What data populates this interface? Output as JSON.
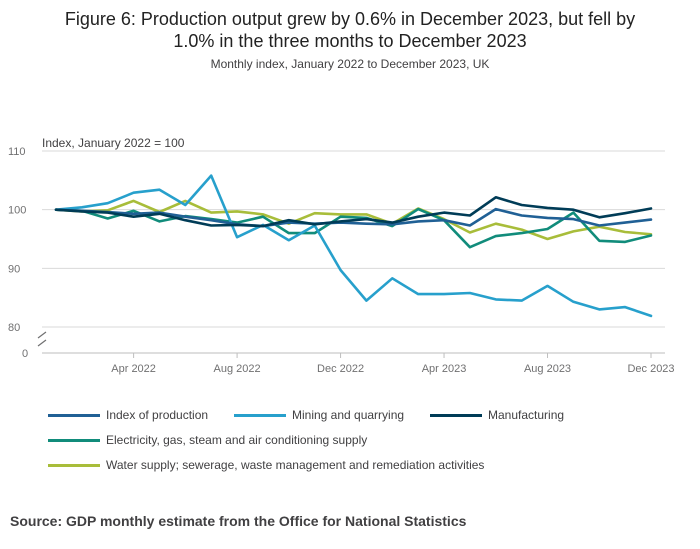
{
  "title": {
    "line1": "Figure 6: Production output grew by 0.6% in December 2023, but fell by",
    "line2": "1.0% in the three months to December 2023"
  },
  "subtitle": "Monthly index, January 2022 to December 2023, UK",
  "source": "Source: GDP monthly estimate from the Office for National Statistics",
  "chart_data": {
    "type": "line",
    "ylabel": "Index, January 2022 = 100",
    "ylim": [
      80,
      110
    ],
    "y_break": true,
    "y_ticks": [
      "110",
      "100",
      "90",
      "80",
      "0"
    ],
    "x": [
      "Jan 2022",
      "Feb 2022",
      "Mar 2022",
      "Apr 2022",
      "May 2022",
      "Jun 2022",
      "Jul 2022",
      "Aug 2022",
      "Sep 2022",
      "Oct 2022",
      "Nov 2022",
      "Dec 2022",
      "Jan 2023",
      "Feb 2023",
      "Mar 2023",
      "Apr 2023",
      "May 2023",
      "Jun 2023",
      "Jul 2023",
      "Aug 2023",
      "Sep 2023",
      "Oct 2023",
      "Nov 2023",
      "Dec 2023"
    ],
    "x_tick_labels": [
      {
        "label": "Apr 2022",
        "index": 3
      },
      {
        "label": "Aug 2022",
        "index": 7
      },
      {
        "label": "Dec 2022",
        "index": 11
      },
      {
        "label": "Apr 2023",
        "index": 15
      },
      {
        "label": "Aug 2023",
        "index": 19
      },
      {
        "label": "Dec 2023",
        "index": 23
      }
    ],
    "grid": "horizontal",
    "legend_position": "bottom",
    "series": [
      {
        "name": "Index of production",
        "color": "#206095",
        "values": [
          100,
          99.8,
          99.6,
          99.3,
          99.5,
          98.8,
          98.2,
          97.5,
          97.2,
          97.8,
          97.6,
          97.8,
          97.6,
          97.5,
          98.0,
          98.2,
          97.3,
          100.1,
          99.0,
          98.6,
          98.4,
          97.3,
          97.8,
          98.3
        ]
      },
      {
        "name": "Mining and quarrying",
        "color": "#27A0CC",
        "values": [
          100,
          100.4,
          101.1,
          102.9,
          103.4,
          100.8,
          105.8,
          95.3,
          97.4,
          94.8,
          97.3,
          89.7,
          84.5,
          88.3,
          85.6,
          85.6,
          85.8,
          84.7,
          84.5,
          87.0,
          84.3,
          83.0,
          83.4,
          81.9
        ]
      },
      {
        "name": "Manufacturing",
        "color": "#003C57",
        "values": [
          100,
          99.7,
          99.5,
          98.8,
          99.3,
          98.2,
          97.3,
          97.4,
          97.2,
          98.2,
          97.5,
          98.0,
          98.4,
          97.8,
          98.8,
          99.5,
          99.0,
          102.1,
          100.8,
          100.3,
          100.0,
          98.7,
          99.4,
          100.2
        ]
      },
      {
        "name": "Electricity, gas, steam and air conditioning supply",
        "color": "#118C7B",
        "values": [
          100,
          99.8,
          98.5,
          99.8,
          98.0,
          98.9,
          98.4,
          97.8,
          98.8,
          96.0,
          96.0,
          98.8,
          98.6,
          97.2,
          100.1,
          98.2,
          93.6,
          95.5,
          96.0,
          96.7,
          99.5,
          94.7,
          94.5,
          95.6
        ]
      },
      {
        "name": "Water supply; sewerage, waste management and remediation activities",
        "color": "#A8BD3A",
        "values": [
          100,
          99.7,
          99.9,
          101.5,
          99.6,
          101.5,
          99.5,
          99.7,
          99.2,
          97.6,
          99.4,
          99.2,
          99.2,
          97.6,
          100.2,
          98.4,
          96.1,
          97.6,
          96.6,
          95.0,
          96.3,
          97.1,
          96.2,
          95.8
        ]
      }
    ]
  }
}
